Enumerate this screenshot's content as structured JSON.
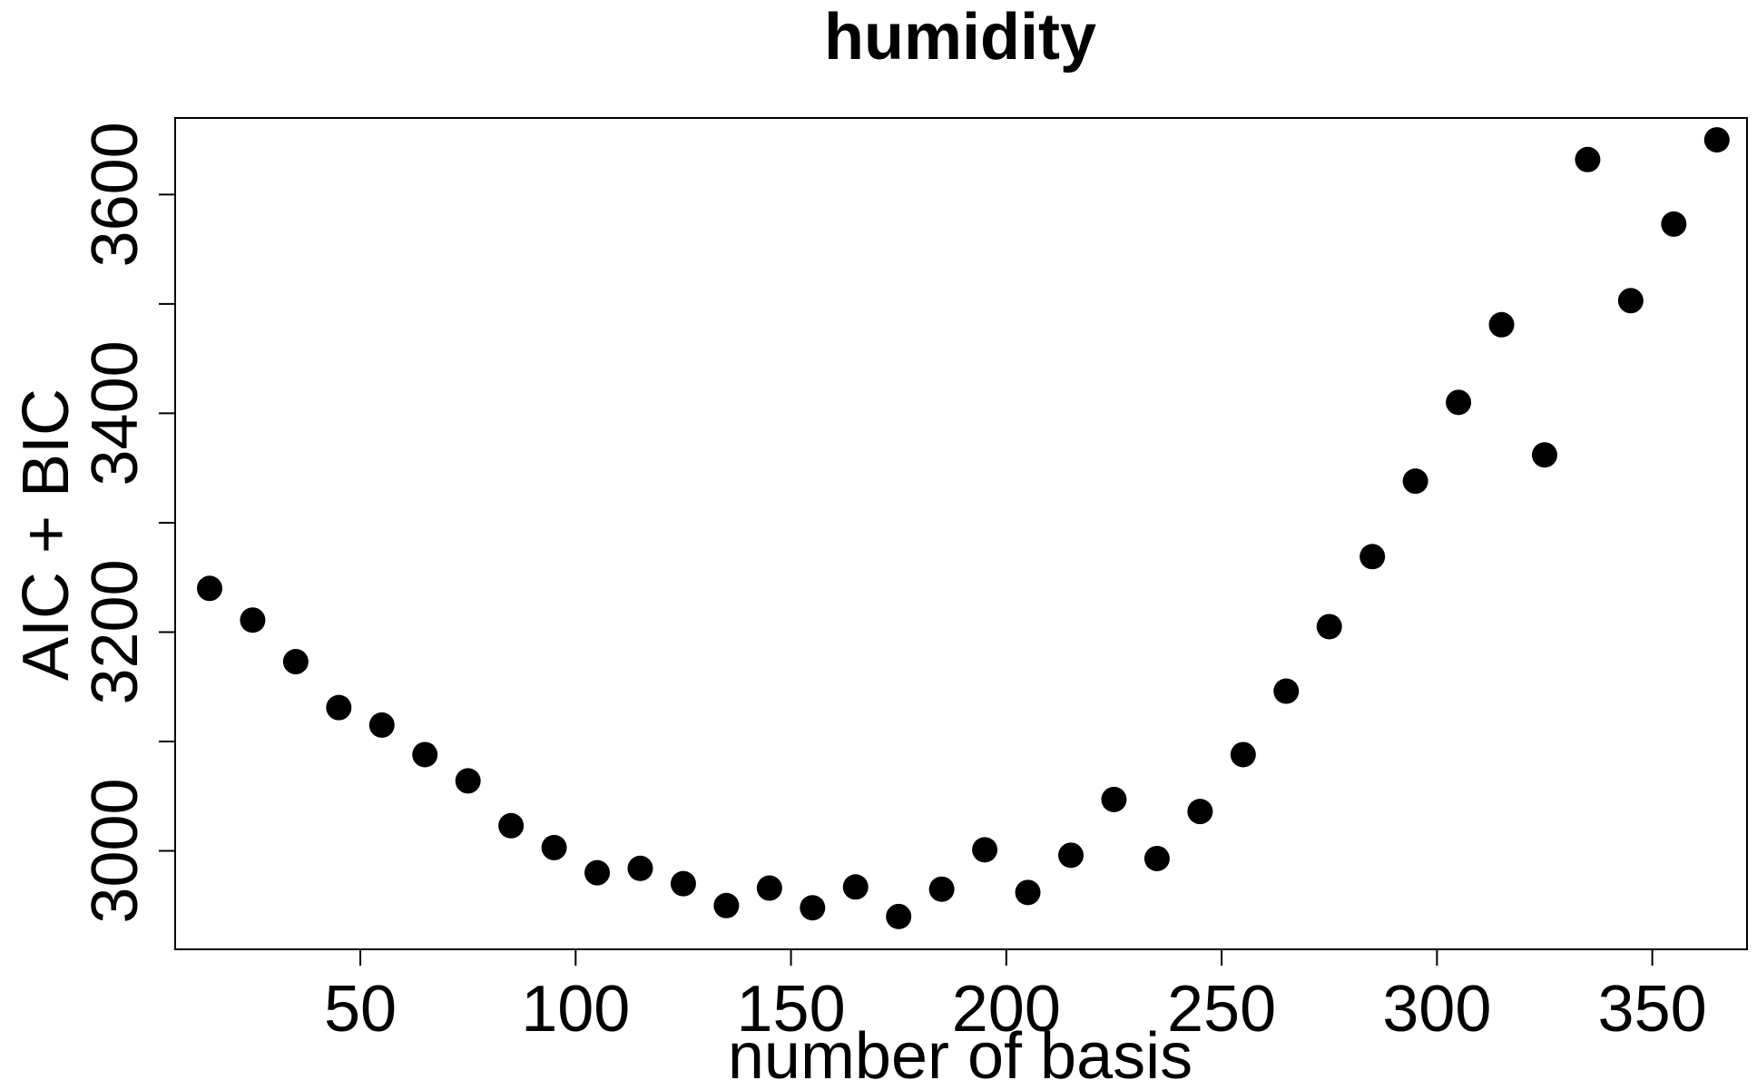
{
  "chart_data": {
    "type": "scatter",
    "title": "humidity",
    "xlabel": "number of basis",
    "ylabel": "AIC + BIC",
    "xlim": [
      7,
      372
    ],
    "ylim": [
      2910,
      3670
    ],
    "x_ticks": [
      50,
      100,
      150,
      200,
      250,
      300,
      350
    ],
    "y_ticks": [
      3000,
      3100,
      3200,
      3300,
      3400,
      3500,
      3600
    ],
    "y_tick_labels": [
      "3000",
      "",
      "3200",
      "",
      "3400",
      "",
      "3600"
    ],
    "grid": false,
    "legend": "none",
    "marker_color": "#000000",
    "series": [
      {
        "x": [
          15,
          25,
          35,
          45,
          55,
          65,
          75,
          85,
          95,
          105,
          115,
          125,
          135,
          145,
          155,
          165,
          175,
          185,
          195,
          205,
          215,
          225,
          235,
          245,
          255,
          265,
          275,
          285,
          295,
          305,
          315,
          325,
          335,
          345,
          355,
          365
        ],
        "values": [
          3240,
          3211,
          3173,
          3131,
          3115,
          3088,
          3064,
          3023,
          3003,
          2980,
          2984,
          2970,
          2950,
          2966,
          2948,
          2967,
          2940,
          2965,
          3001,
          2962,
          2996,
          3047,
          2993,
          3036,
          3088,
          3146,
          3205,
          3269,
          3338,
          3410,
          3481,
          3362,
          3632,
          3503,
          3573,
          3650
        ]
      }
    ]
  }
}
